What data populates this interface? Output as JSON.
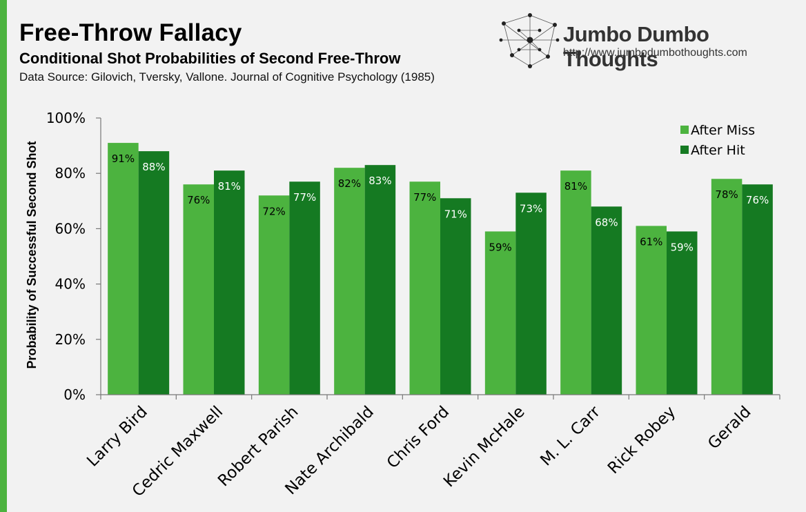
{
  "header": {
    "title": "Free-Throw Fallacy",
    "subtitle": "Conditional Shot Probabilities of Second Free-Throw",
    "source": "Data Source: Gilovich, Tversky, Vallone. Journal of Cognitive Psychology (1985)"
  },
  "brand": {
    "name": "Jumbo Dumbo Thoughts",
    "url": "http://www.jumbodumbothoughts.com"
  },
  "colors": {
    "accent": "#4cb33f",
    "after_miss": "#4cb33f",
    "after_hit": "#157a22",
    "background": "#f2f2f2"
  },
  "chart_data": {
    "type": "bar",
    "categories": [
      "Larry Bird",
      "Cedric Maxwell",
      "Robert Parish",
      "Nate Archibald",
      "Chris Ford",
      "Kevin McHale",
      "M. L. Carr",
      "Rick Robey",
      "Gerald"
    ],
    "series": [
      {
        "name": "After Miss",
        "values": [
          91,
          76,
          72,
          82,
          77,
          59,
          81,
          61,
          78
        ],
        "labels": [
          "91%",
          "76%",
          "72%",
          "82%",
          "77%",
          "59%",
          "81%",
          "61%",
          "78%"
        ]
      },
      {
        "name": "After Hit",
        "values": [
          88,
          81,
          77,
          83,
          71,
          73,
          68,
          59,
          76
        ],
        "labels": [
          "88%",
          "81%",
          "77%",
          "83%",
          "71%",
          "73%",
          "68%",
          "59%",
          "76%"
        ]
      }
    ],
    "ylabel": "Probability of Successful Second Shot",
    "ylim": [
      0,
      100
    ],
    "yticks": [
      0,
      20,
      40,
      60,
      80,
      100
    ],
    "ytick_labels": [
      "0%",
      "20%",
      "40%",
      "60%",
      "80%",
      "100%"
    ],
    "grid": false,
    "legend_position": "top-right"
  }
}
